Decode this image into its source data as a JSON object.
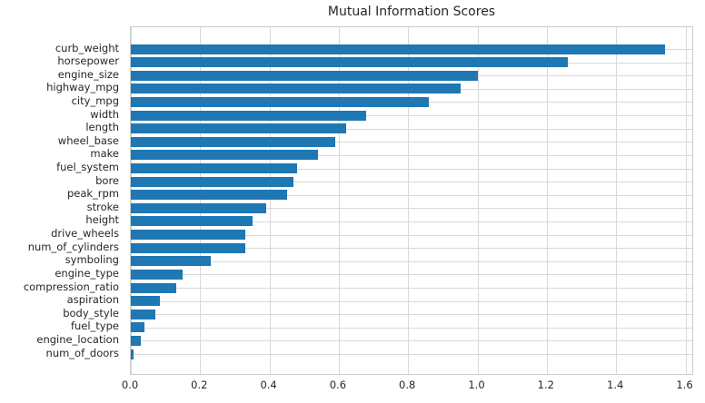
{
  "chart_data": {
    "type": "bar",
    "orientation": "horizontal",
    "title": "Mutual Information Scores",
    "xlabel": "",
    "ylabel": "",
    "categories": [
      "curb_weight",
      "horsepower",
      "engine_size",
      "highway_mpg",
      "city_mpg",
      "width",
      "length",
      "wheel_base",
      "make",
      "fuel_system",
      "bore",
      "peak_rpm",
      "stroke",
      "height",
      "drive_wheels",
      "num_of_cylinders",
      "symboling",
      "engine_type",
      "compression_ratio",
      "aspiration",
      "body_style",
      "fuel_type",
      "engine_location",
      "num_of_doors"
    ],
    "values": [
      1.54,
      1.26,
      1.0,
      0.95,
      0.86,
      0.68,
      0.62,
      0.59,
      0.54,
      0.48,
      0.47,
      0.45,
      0.39,
      0.35,
      0.33,
      0.33,
      0.23,
      0.15,
      0.13,
      0.085,
      0.07,
      0.04,
      0.03,
      0.007
    ],
    "xlim": [
      0,
      1.625
    ],
    "xticks": [
      0.0,
      0.2,
      0.4,
      0.6,
      0.8,
      1.0,
      1.2,
      1.4,
      1.6
    ],
    "xtick_labels": [
      "0.0",
      "0.2",
      "0.4",
      "0.6",
      "0.8",
      "1.0",
      "1.2",
      "1.4",
      "1.6"
    ],
    "grid": true,
    "legend": "none",
    "colors": {
      "bar": "#1f77b4",
      "grid": "#d9d9d9",
      "spine": "#cccccc",
      "text": "#262626",
      "background": "#ffffff"
    }
  }
}
